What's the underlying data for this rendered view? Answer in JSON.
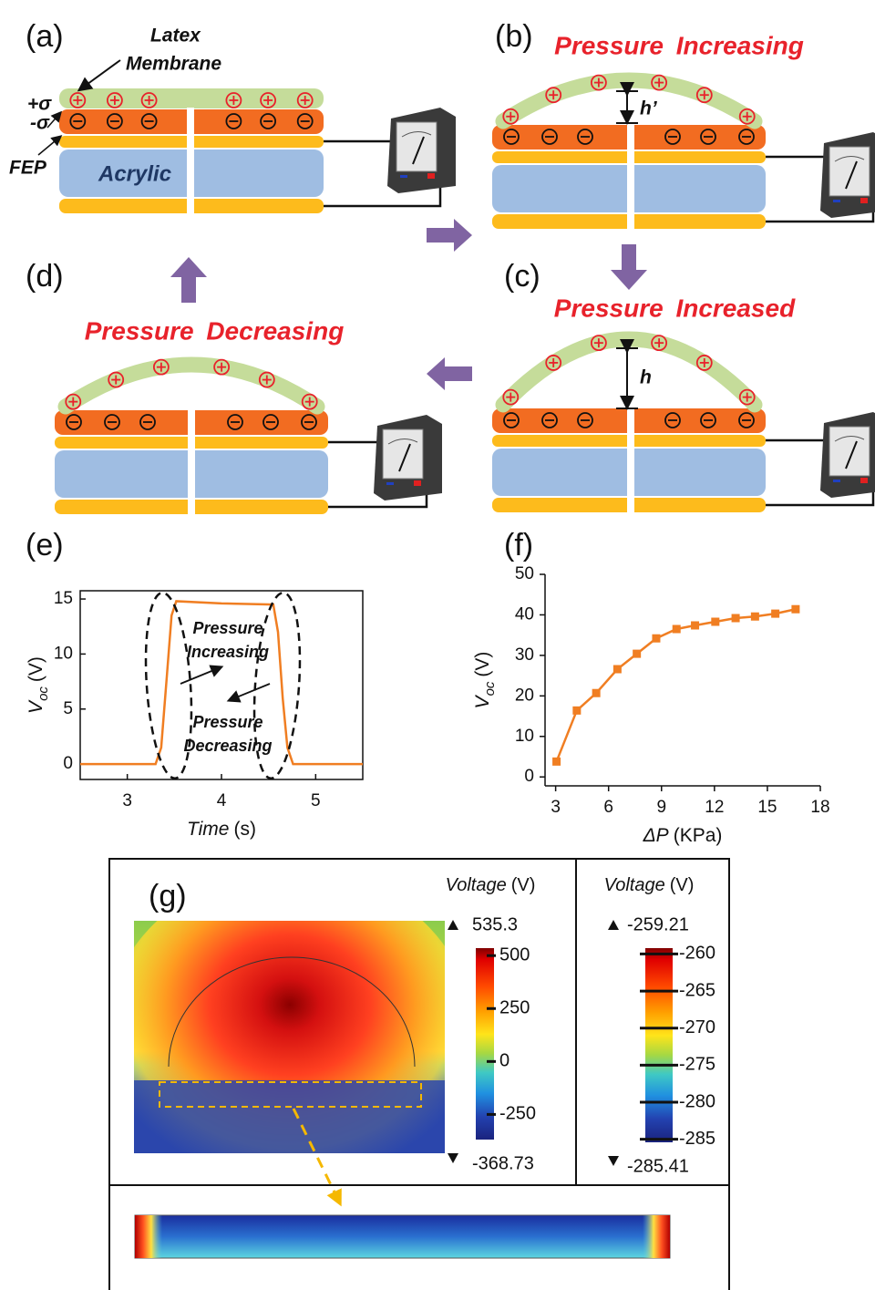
{
  "panels": {
    "a": {
      "label": "(a)",
      "membrane_label": [
        "Latex",
        "Membrane"
      ],
      "positive_charge": "+σ",
      "negative_charge": "-σ",
      "fep": "FEP",
      "acrylic": "Acrylic"
    },
    "b": {
      "label": "(b)",
      "title": "Pressure Increasing",
      "height": "h’"
    },
    "c": {
      "label": "(c)",
      "title": "Pressure Increased",
      "height": "h"
    },
    "d": {
      "label": "(d)",
      "title": "Pressure Decreasing"
    },
    "e": {
      "label": "(e)"
    },
    "f": {
      "label": "(f)"
    },
    "g": {
      "label": "(g)"
    }
  },
  "chart_data": [
    {
      "type": "line",
      "color": "#f07e22",
      "x": [
        2.5,
        3.3,
        3.36,
        3.42,
        3.47,
        3.52,
        4.0,
        4.55,
        4.6,
        4.65,
        4.7,
        4.76,
        5.5
      ],
      "values": [
        0,
        0,
        1.5,
        8,
        13.5,
        14.8,
        14.6,
        14.5,
        12,
        6,
        1.5,
        0,
        0
      ],
      "xlim": [
        2.5,
        5.5
      ],
      "ylim": [
        -1.4,
        15.75
      ],
      "xticks": [
        3,
        4,
        5
      ],
      "yticks": [
        0,
        5,
        10,
        15
      ],
      "xlabel": {
        "main": "Time",
        "unit": "(s)"
      },
      "ylabel": {
        "main": "V",
        "sub": "oc",
        "unit": "(V)"
      },
      "annotations": [
        [
          "Pressure",
          "Increasing"
        ],
        [
          "Pressure",
          "Decreasing"
        ]
      ]
    },
    {
      "type": "line",
      "color": "#f07e22",
      "markers": "square",
      "x": [
        3.05,
        4.2,
        5.3,
        6.5,
        7.6,
        8.7,
        9.85,
        10.9,
        12.05,
        13.2,
        14.3,
        15.45,
        16.6
      ],
      "values": [
        3.8,
        16.4,
        20.7,
        26.6,
        30.4,
        34.2,
        36.5,
        37.4,
        38.3,
        39.2,
        39.6,
        40.3,
        41.4
      ],
      "xlim": [
        2.4,
        18
      ],
      "ylim": [
        -2.2,
        50
      ],
      "xticks": [
        3,
        6,
        9,
        12,
        15,
        18
      ],
      "yticks": [
        0,
        10,
        20,
        30,
        40,
        50
      ],
      "xlabel": {
        "main": "ΔP",
        "unit": "(KPa)"
      },
      "ylabel": {
        "main": "V",
        "sub": "oc",
        "unit": "(V)"
      }
    },
    {
      "type": "colorbar",
      "label": {
        "main": "Voltage",
        "unit": "(V)"
      },
      "ylim": [
        -368.73,
        535.3
      ],
      "yticks": [
        -250,
        0,
        250,
        500
      ]
    },
    {
      "type": "colorbar",
      "label": {
        "main": "Voltage",
        "unit": "(V)"
      },
      "ylim": [
        -285.41,
        -259.21
      ],
      "yticks": [
        -285,
        -280,
        -275,
        -270,
        -265,
        -260
      ]
    }
  ]
}
